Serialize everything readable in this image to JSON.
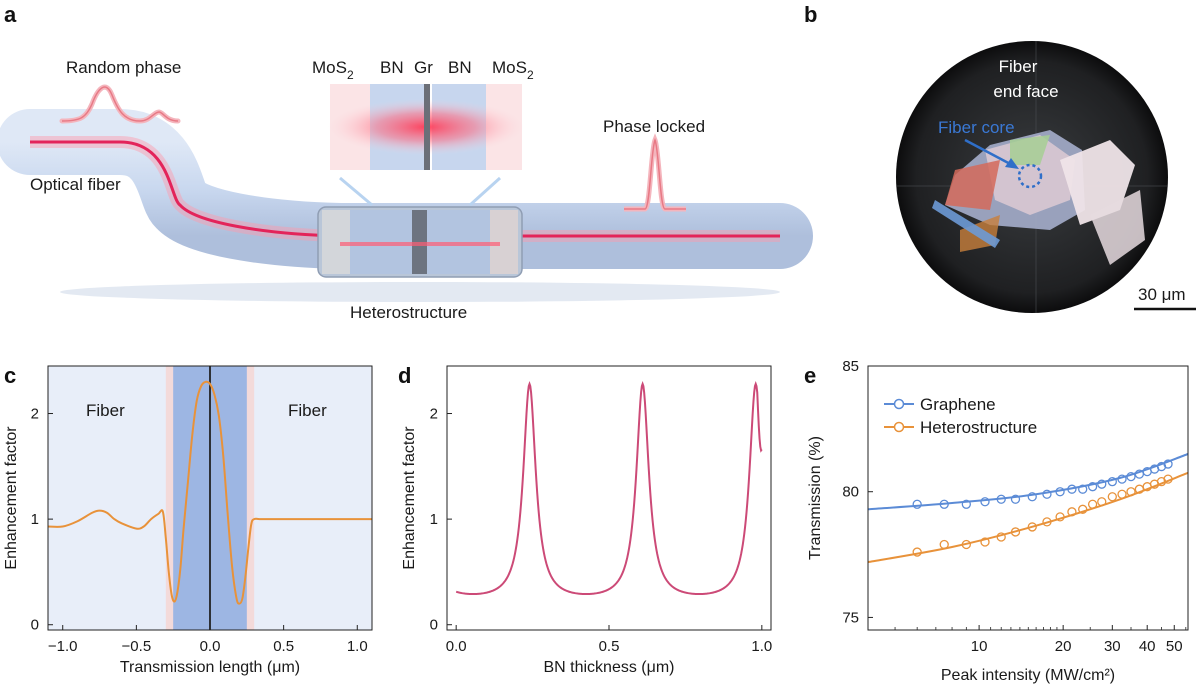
{
  "panel_labels": [
    "a",
    "b",
    "c",
    "d",
    "e"
  ],
  "panel_a": {
    "random_phase": "Random phase",
    "optical_fiber": "Optical fiber",
    "phase_locked": "Phase locked",
    "heterostructure": "Heterostructure",
    "layers": [
      {
        "label": "MoS",
        "sub": "2"
      },
      {
        "label": "BN",
        "sub": ""
      },
      {
        "label": "Gr",
        "sub": ""
      },
      {
        "label": "BN",
        "sub": ""
      },
      {
        "label": "MoS",
        "sub": "2"
      }
    ]
  },
  "panel_b": {
    "fiber_end_face_1": "Fiber",
    "fiber_end_face_2": "end face",
    "fiber_core": "Fiber core",
    "scale_bar": "30 μm"
  },
  "colors": {
    "orange": "#e8923a",
    "pink": "#cc4a77",
    "blue": "#5b8bd6",
    "fiber_bg": "#e8eef9",
    "core_band": "#9db6e3",
    "interface": "#f3dada"
  },
  "chart_data": [
    {
      "id": "c",
      "type": "line",
      "title": "",
      "xlabel": "Transmission length (μm)",
      "ylabel": "Enhancement factor",
      "xlim": [
        -1.1,
        1.1
      ],
      "ylim": [
        -0.05,
        2.45
      ],
      "xticks": [
        -1.0,
        -0.5,
        0.0,
        0.5,
        1.0
      ],
      "xtick_labels": [
        "−1.0",
        "−0.5",
        "0.0",
        "0.5",
        "1.0"
      ],
      "yticks": [
        0,
        1,
        2
      ],
      "ytick_labels": [
        "0",
        "1",
        "2"
      ],
      "region_labels": [
        "Fiber",
        "Fiber"
      ],
      "regions": {
        "core": [
          -0.25,
          0.25
        ],
        "interface": [
          -0.3,
          0.3
        ],
        "center_line": 0.0
      },
      "series": [
        {
          "name": "Enhancement factor",
          "x": [
            -1.1,
            -1.0,
            -0.9,
            -0.8,
            -0.75,
            -0.7,
            -0.65,
            -0.6,
            -0.5,
            -0.45,
            -0.4,
            -0.35,
            -0.32,
            -0.3,
            -0.28,
            -0.26,
            -0.24,
            -0.22,
            -0.2,
            -0.18,
            -0.15,
            -0.12,
            -0.09,
            -0.06,
            -0.03,
            0.0,
            0.03,
            0.06,
            0.09,
            0.12,
            0.15,
            0.18,
            0.2,
            0.22,
            0.24,
            0.26,
            0.28,
            0.3,
            0.35,
            0.5,
            0.7,
            0.9,
            1.1
          ],
          "y": [
            0.93,
            0.93,
            0.98,
            1.06,
            1.08,
            1.06,
            1.0,
            0.96,
            0.91,
            0.93,
            1.0,
            1.05,
            1.07,
            0.82,
            0.5,
            0.28,
            0.22,
            0.32,
            0.55,
            0.9,
            1.35,
            1.8,
            2.12,
            2.26,
            2.3,
            2.28,
            2.18,
            1.98,
            1.6,
            1.05,
            0.55,
            0.25,
            0.2,
            0.25,
            0.45,
            0.72,
            0.95,
            1.0,
            1.0,
            1.0,
            1.0,
            1.0,
            1.0
          ]
        }
      ]
    },
    {
      "id": "d",
      "type": "line",
      "title": "",
      "xlabel": "BN thickness (μm)",
      "ylabel": "Enhancement factor",
      "xlim": [
        -0.03,
        1.03
      ],
      "ylim": [
        -0.05,
        2.45
      ],
      "xticks": [
        0.0,
        0.5,
        1.0
      ],
      "xtick_labels": [
        "0.0",
        "0.5",
        "1.0"
      ],
      "yticks": [
        0,
        1,
        2
      ],
      "ytick_labels": [
        "0",
        "1",
        "2"
      ],
      "series": [
        {
          "name": "Enhancement factor",
          "period": 0.37,
          "first_peak": 0.24,
          "peak_value": 2.28,
          "min_value": 0.2,
          "x_range": [
            0.0,
            1.0
          ],
          "end_value": 1.66
        }
      ]
    },
    {
      "id": "e",
      "type": "scatter",
      "title": "",
      "xlabel": "Peak intensity (MW/cm²)",
      "ylabel": "Transmission (%)",
      "xscale": "log",
      "xlim": [
        4.0,
        56.0
      ],
      "ylim": [
        74.5,
        85.0
      ],
      "xticks": [
        10,
        20,
        30,
        40,
        50
      ],
      "xtick_labels": [
        "10",
        "20",
        "30",
        "40",
        "50"
      ],
      "yticks": [
        75,
        80,
        85
      ],
      "ytick_labels": [
        "75",
        "80",
        "85"
      ],
      "legend": "top-left",
      "series": [
        {
          "name": "Graphene",
          "color": "#5b8bd6",
          "x": [
            6.0,
            7.5,
            9.0,
            10.5,
            12.0,
            13.5,
            15.5,
            17.5,
            19.5,
            21.5,
            23.5,
            25.5,
            27.5,
            30.0,
            32.5,
            35.0,
            37.5,
            40.0,
            42.5,
            45.0,
            47.5
          ],
          "y": [
            79.5,
            79.5,
            79.5,
            79.6,
            79.7,
            79.7,
            79.8,
            79.9,
            80.0,
            80.1,
            80.1,
            80.2,
            80.3,
            80.4,
            80.5,
            80.6,
            80.7,
            80.8,
            80.9,
            81.0,
            81.1
          ],
          "fit_x": [
            4.0,
            8.0,
            16.0,
            32.0,
            56.0
          ],
          "fit_y": [
            79.3,
            79.55,
            79.9,
            80.55,
            81.5
          ]
        },
        {
          "name": "Heterostructure",
          "color": "#e8923a",
          "x": [
            6.0,
            7.5,
            9.0,
            10.5,
            12.0,
            13.5,
            15.5,
            17.5,
            19.5,
            21.5,
            23.5,
            25.5,
            27.5,
            30.0,
            32.5,
            35.0,
            37.5,
            40.0,
            42.5,
            45.0,
            47.5
          ],
          "y": [
            77.6,
            77.9,
            77.9,
            78.0,
            78.2,
            78.4,
            78.6,
            78.8,
            79.0,
            79.2,
            79.3,
            79.5,
            79.6,
            79.8,
            79.9,
            80.0,
            80.1,
            80.2,
            80.3,
            80.4,
            80.5
          ],
          "fit_x": [
            4.0,
            8.0,
            16.0,
            32.0,
            56.0
          ],
          "fit_y": [
            77.2,
            77.8,
            78.65,
            79.7,
            80.75
          ]
        }
      ]
    }
  ]
}
